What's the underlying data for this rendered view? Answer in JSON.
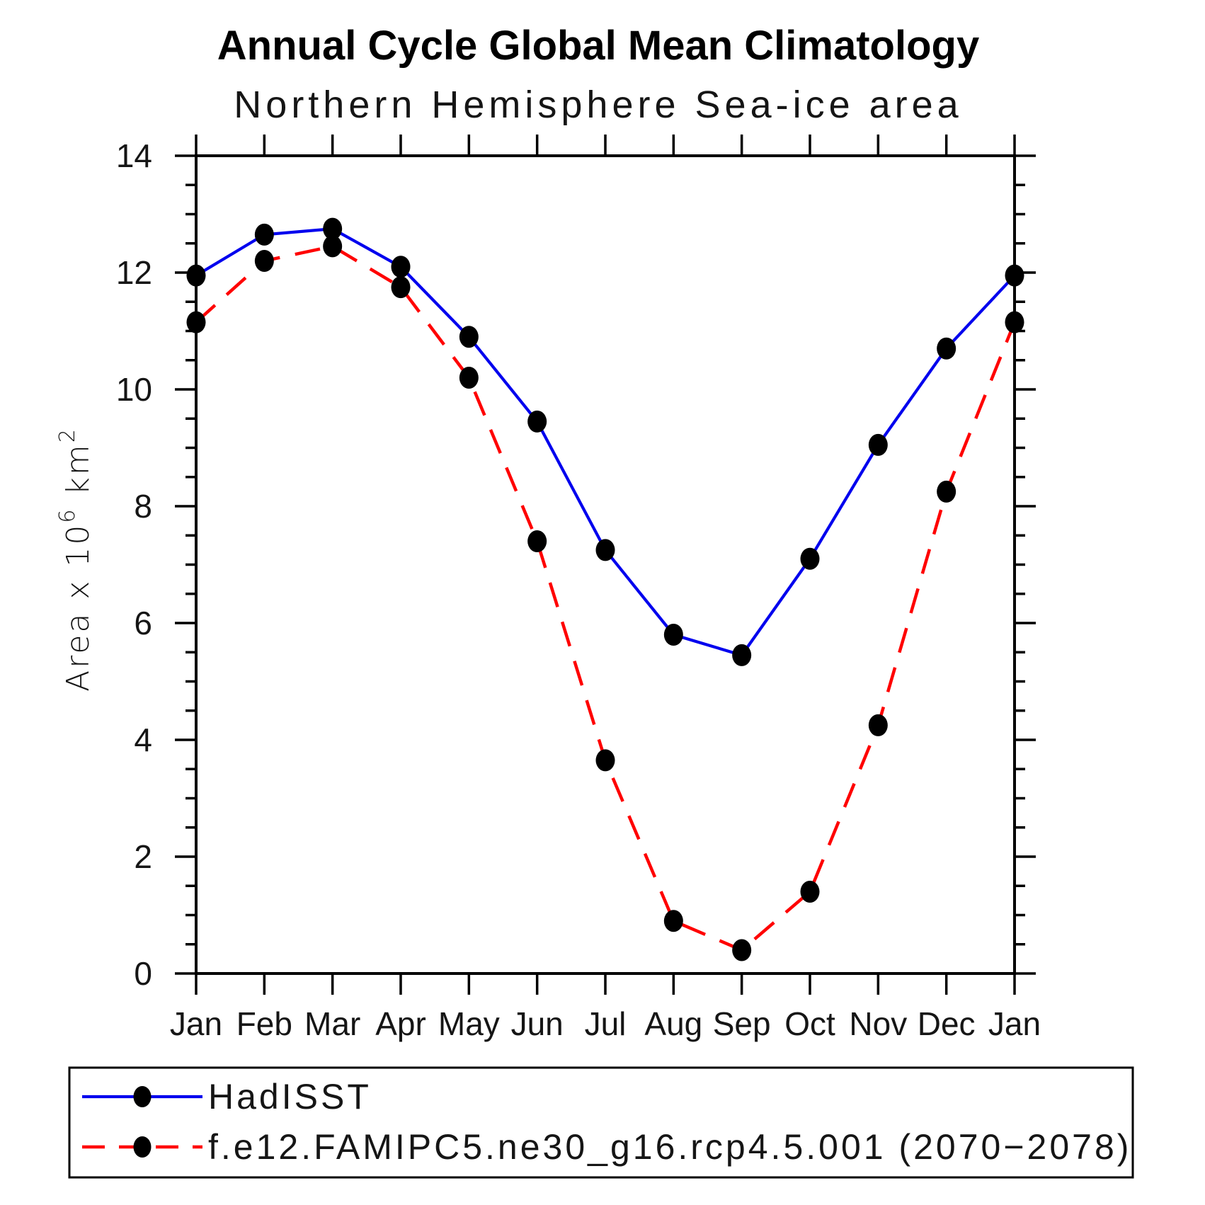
{
  "page": {
    "background": "#ffffff"
  },
  "chart_data": {
    "type": "line",
    "title": "Annual Cycle Global Mean Climatology",
    "subtitle": "Northern Hemisphere Sea-ice area",
    "ylabel": "Area x 10^6 km^2",
    "categories": [
      "Jan",
      "Feb",
      "Mar",
      "Apr",
      "May",
      "Jun",
      "Jul",
      "Aug",
      "Sep",
      "Oct",
      "Nov",
      "Dec",
      "Jan"
    ],
    "ylim": [
      0,
      14
    ],
    "y_major_step": 2,
    "y_minor_step": 0.5,
    "y_major_tick_labels": [
      "0",
      "2",
      "4",
      "6",
      "8",
      "10",
      "12",
      "14"
    ],
    "grid": "off",
    "legend_position": "bottom-left-box",
    "marker_color": "#000000",
    "series": [
      {
        "name": "HadISST",
        "color": "#0000ee",
        "line_style": "solid",
        "marker": "filled-circle",
        "values": [
          11.95,
          12.65,
          12.75,
          12.1,
          10.9,
          9.45,
          7.25,
          5.8,
          5.45,
          7.1,
          9.05,
          10.7,
          11.95
        ]
      },
      {
        "name": "f.e12.FAMIPC5.ne30_g16.rcp4.5.001 (2070−2078)",
        "color": "#ff0000",
        "line_style": "dashed",
        "marker": "filled-circle",
        "values": [
          11.15,
          12.2,
          12.45,
          11.75,
          10.2,
          7.4,
          3.65,
          0.9,
          0.4,
          1.4,
          4.25,
          8.25,
          11.15
        ]
      }
    ]
  }
}
